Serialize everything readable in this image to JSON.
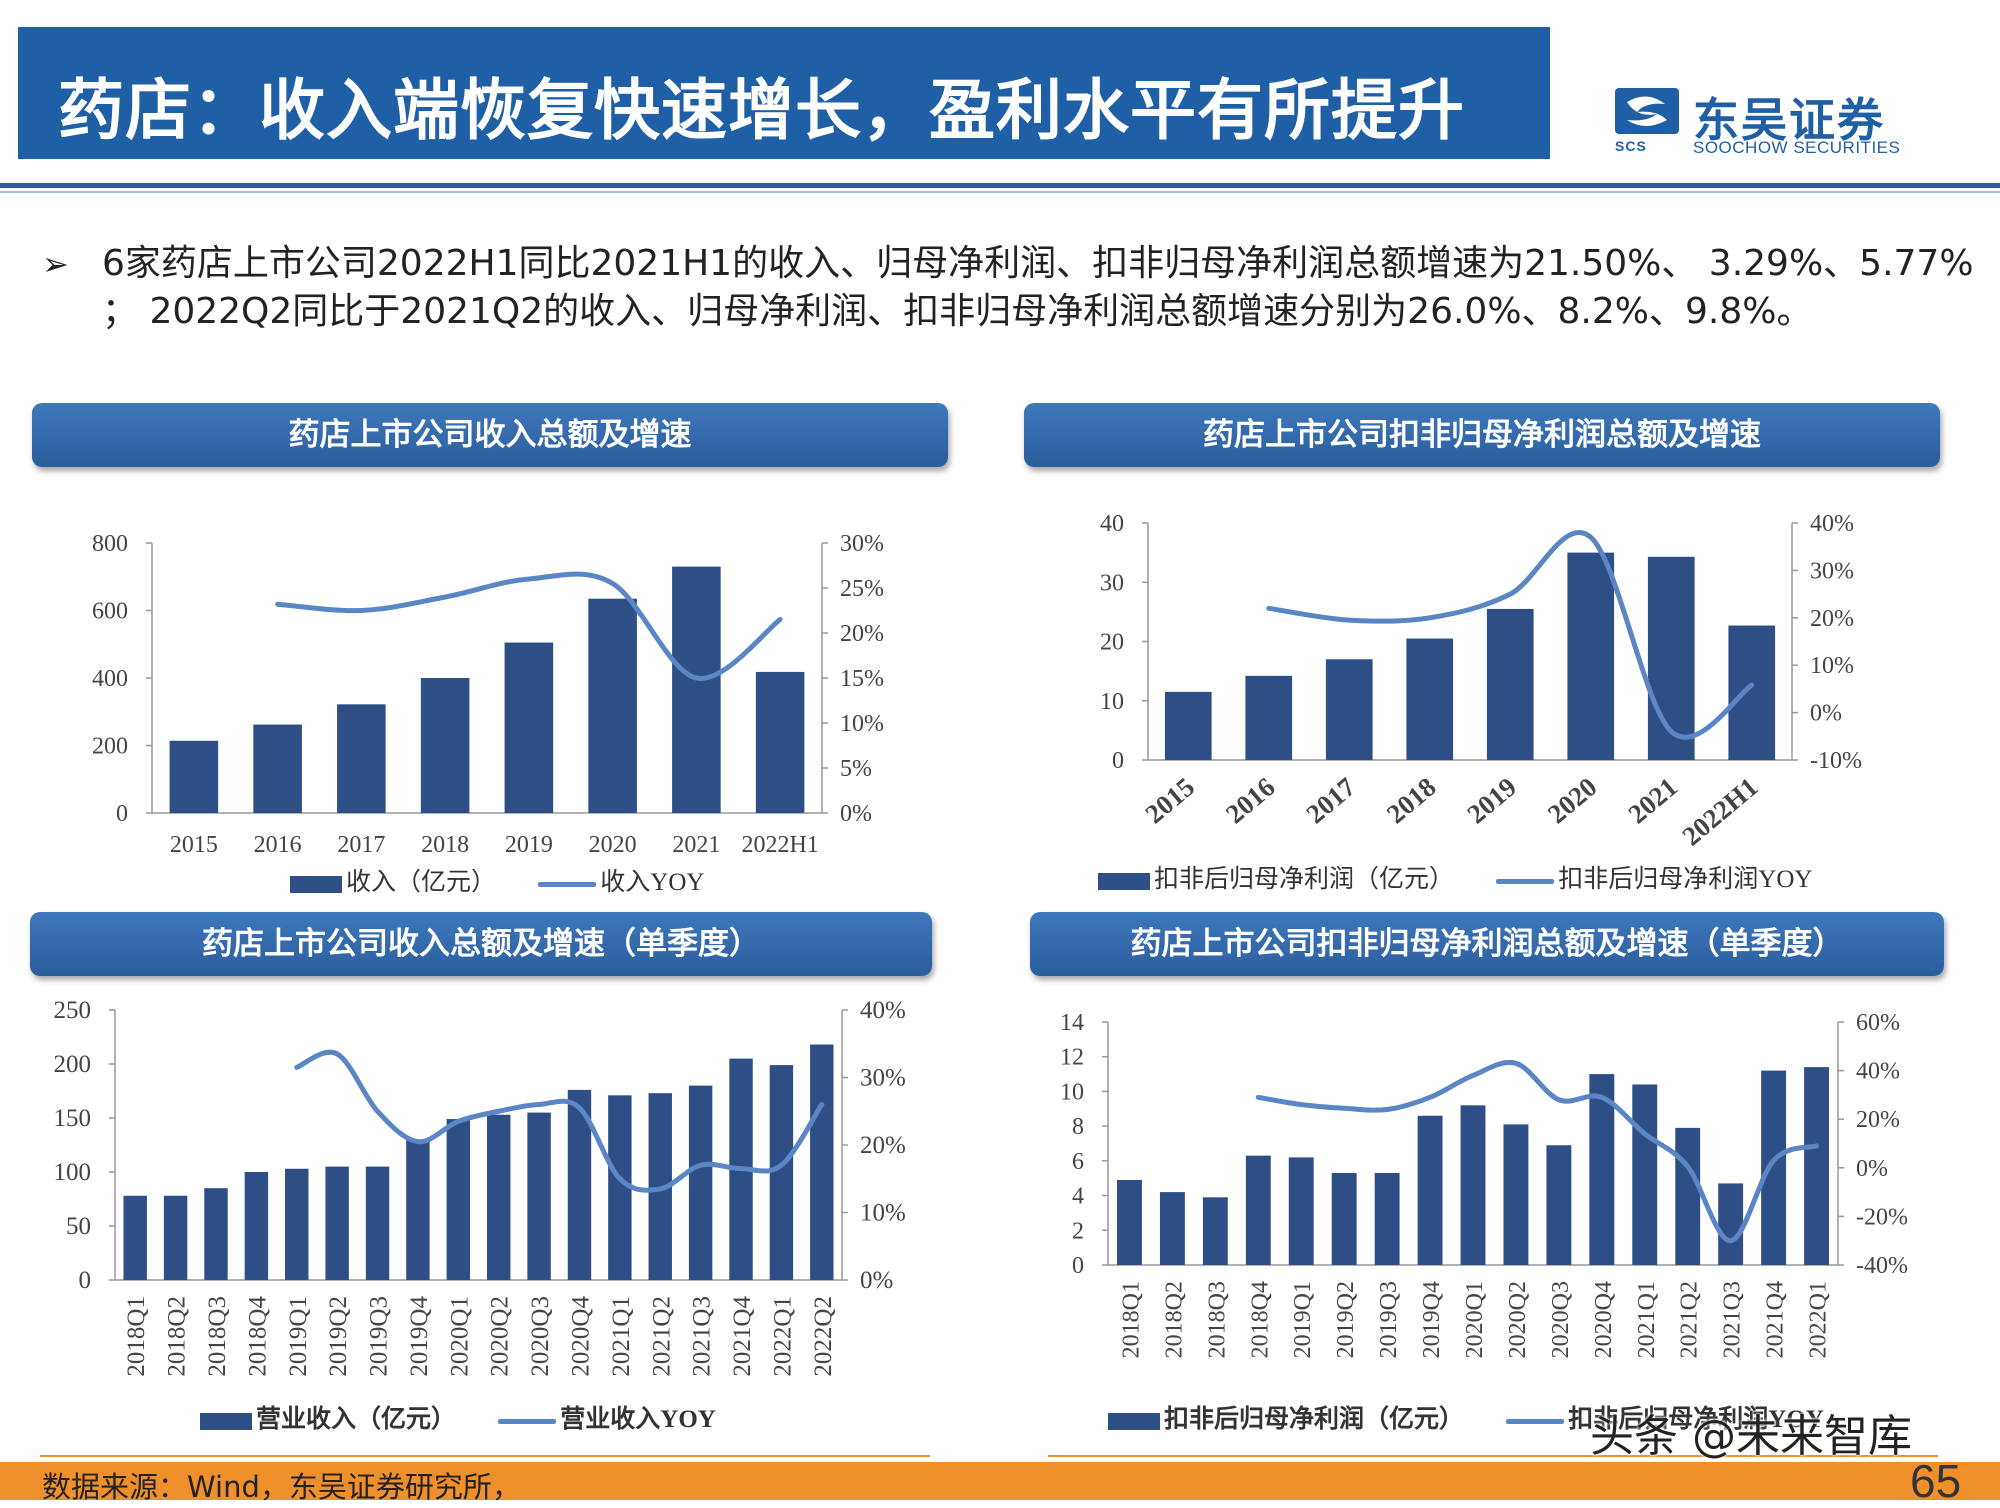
{
  "header": {
    "title": "药店：收入端恢复快速增长，盈利水平有所提升"
  },
  "logo": {
    "name_cn": "东吴证券",
    "name_en": "SOOCHOW SECURITIES",
    "abbr": "SCS",
    "brand_color": "#1f5fa6"
  },
  "bullet": {
    "marker": "➢",
    "text": "6家药店上市公司2022H1同比2021H1的收入、归母净利润、扣非归母净利润总额增速为21.50%、 3.29%、5.77% ； 2022Q2同比于2021Q2的收入、归母净利润、扣非归母净利润总额增速分别为26.0%、8.2%、9.8%。"
  },
  "colors": {
    "bar": "#2d4f86",
    "line": "#5b86c5",
    "title_bg": "#2f65a8",
    "footer": "#f0902b"
  },
  "chart_data": [
    {
      "panel_title": "药店上市公司收入总额及增速",
      "type": "bar",
      "categories": [
        "2015",
        "2016",
        "2017",
        "2018",
        "2019",
        "2020",
        "2021",
        "2022H1"
      ],
      "series": [
        {
          "name": "收入（亿元）",
          "type": "bar",
          "axis": "left",
          "values": [
            214,
            262,
            322,
            400,
            505,
            635,
            730,
            418
          ]
        },
        {
          "name": "收入YOY",
          "type": "line",
          "axis": "right",
          "values": [
            null,
            23.2,
            22.5,
            24.0,
            26.0,
            25.5,
            15.0,
            21.5
          ]
        }
      ],
      "y_left": {
        "min": 0,
        "max": 800,
        "ticks": [
          "0",
          "200",
          "400",
          "600",
          "800"
        ]
      },
      "y_right": {
        "min": 0,
        "max": 30,
        "ticks": [
          "0%",
          "5%",
          "10%",
          "15%",
          "20%",
          "25%",
          "30%"
        ]
      },
      "x_rotated": false
    },
    {
      "panel_title": "药店上市公司扣非归母净利润总额及增速",
      "type": "bar",
      "categories": [
        "2015",
        "2016",
        "2017",
        "2018",
        "2019",
        "2020",
        "2021",
        "2022H1"
      ],
      "series": [
        {
          "name": "扣非后归母净利润（亿元）",
          "type": "bar",
          "axis": "left",
          "values": [
            11.5,
            14.2,
            17.0,
            20.5,
            25.5,
            35.0,
            34.3,
            22.7
          ]
        },
        {
          "name": "扣非后归母净利润YOY",
          "type": "line",
          "axis": "right",
          "values": [
            null,
            22.0,
            19.5,
            20.0,
            25.0,
            37.0,
            -4.0,
            5.8
          ]
        }
      ],
      "y_left": {
        "min": 0,
        "max": 40,
        "ticks": [
          "0",
          "10",
          "20",
          "30",
          "40"
        ]
      },
      "y_right": {
        "min": -10,
        "max": 40,
        "ticks": [
          "-10%",
          "0%",
          "10%",
          "20%",
          "30%",
          "40%"
        ]
      },
      "x_rotated": true
    },
    {
      "panel_title": "药店上市公司收入总额及增速（单季度）",
      "type": "bar",
      "categories": [
        "2018Q1",
        "2018Q2",
        "2018Q3",
        "2018Q4",
        "2019Q1",
        "2019Q2",
        "2019Q3",
        "2019Q4",
        "2020Q1",
        "2020Q2",
        "2020Q3",
        "2020Q4",
        "2021Q1",
        "2021Q2",
        "2021Q3",
        "2021Q4",
        "2022Q1",
        "2022Q2"
      ],
      "series": [
        {
          "name": "营业收入（亿元）",
          "type": "bar",
          "axis": "left",
          "values": [
            78,
            78,
            85,
            100,
            103,
            105,
            105,
            130,
            149,
            153,
            155,
            176,
            171,
            173,
            180,
            205,
            199,
            218
          ]
        },
        {
          "name": "营业收入YOY",
          "type": "line",
          "axis": "right",
          "values": [
            null,
            null,
            null,
            null,
            31.5,
            33.5,
            25.0,
            20.5,
            23.5,
            25.0,
            26.0,
            25.5,
            15.0,
            13.5,
            17.0,
            16.5,
            17.0,
            26.0
          ]
        }
      ],
      "y_left": {
        "min": 0,
        "max": 250,
        "ticks": [
          "0",
          "50",
          "100",
          "150",
          "200",
          "250"
        ]
      },
      "y_right": {
        "min": 0,
        "max": 40,
        "ticks": [
          "0%",
          "10%",
          "20%",
          "30%",
          "40%"
        ]
      },
      "x_rotated": true
    },
    {
      "panel_title": "药店上市公司扣非归母净利润总额及增速（单季度）",
      "type": "bar",
      "categories": [
        "2018Q1",
        "2018Q2",
        "2018Q3",
        "2018Q4",
        "2019Q1",
        "2019Q2",
        "2019Q3",
        "2019Q4",
        "2020Q1",
        "2020Q2",
        "2020Q3",
        "2020Q4",
        "2021Q1",
        "2021Q2",
        "2021Q3",
        "2021Q4",
        "2022Q1"
      ],
      "series": [
        {
          "name": "扣非后归母净利润（亿元）",
          "type": "bar",
          "axis": "left",
          "values": [
            4.9,
            4.2,
            3.9,
            6.3,
            6.2,
            5.3,
            5.3,
            8.6,
            9.2,
            8.1,
            6.9,
            11.0,
            10.4,
            7.9,
            4.7,
            11.2,
            11.4
          ]
        },
        {
          "name": "扣非后归母净利润YOY",
          "type": "line",
          "axis": "right",
          "values": [
            null,
            null,
            null,
            29.0,
            26.0,
            24.5,
            24.0,
            29.0,
            38.0,
            43.0,
            28.0,
            29.0,
            14.0,
            0.5,
            -30.0,
            3.0,
            9.0
          ]
        }
      ],
      "y_left": {
        "min": 0,
        "max": 14,
        "ticks": [
          "0",
          "2",
          "4",
          "6",
          "8",
          "10",
          "12",
          "14"
        ]
      },
      "y_right": {
        "min": -40,
        "max": 60,
        "ticks": [
          "-40%",
          "-20%",
          "0%",
          "20%",
          "40%",
          "60%"
        ]
      },
      "x_rotated": true
    }
  ],
  "footer": {
    "source": "数据来源：Wind，东吴证券研究所，",
    "page_number": "65",
    "watermark": "头条 @未来智库"
  }
}
